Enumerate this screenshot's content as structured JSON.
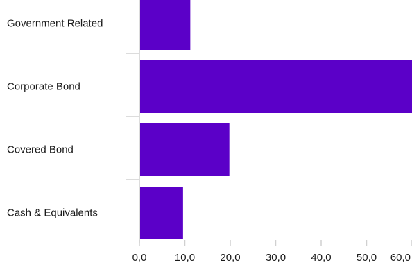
{
  "chart_data": {
    "type": "bar",
    "orientation": "horizontal",
    "categories": [
      "Government Related",
      "Corporate Bond",
      "Covered Bond",
      "Cash & Equivalents"
    ],
    "values": [
      11.2,
      60.5,
      19.8,
      9.6
    ],
    "xlim": [
      0,
      60
    ],
    "xticks": [
      0,
      10,
      20,
      30,
      40,
      50,
      60
    ],
    "xtick_labels": [
      "0,0",
      "10,0",
      "20,0",
      "30,0",
      "40,0",
      "50,0",
      "60,0"
    ],
    "bar_color": "#5b00c8",
    "title": "",
    "xlabel": "",
    "ylabel": ""
  }
}
